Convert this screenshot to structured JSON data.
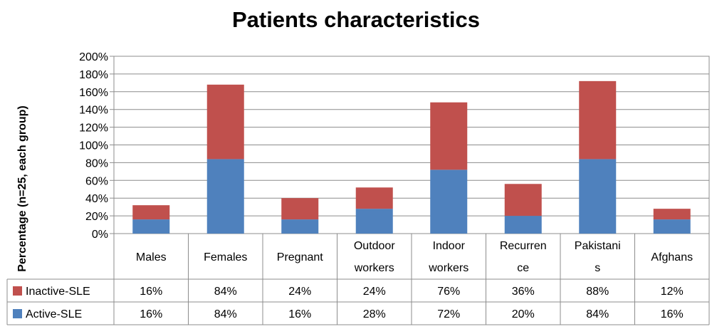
{
  "chart_data": {
    "type": "bar",
    "stacked": true,
    "title": "Patients characteristics",
    "xlabel": "",
    "ylabel": "Percentage (n=25, each group)",
    "ylim": [
      0,
      200
    ],
    "yticks": [
      "0%",
      "20%",
      "40%",
      "60%",
      "80%",
      "100%",
      "120%",
      "140%",
      "160%",
      "180%",
      "200%"
    ],
    "grid": true,
    "legend": "data-table-left",
    "categories": [
      [
        "Males"
      ],
      [
        "Females"
      ],
      [
        "Pregnant"
      ],
      [
        "Outdoor",
        "workers"
      ],
      [
        "Indoor",
        "workers"
      ],
      [
        "Recurren",
        "ce"
      ],
      [
        "Pakistani",
        "s"
      ],
      [
        "Afghans"
      ]
    ],
    "series": [
      {
        "name": "Active-SLE",
        "color": "#4f81bd",
        "values": [
          16,
          84,
          16,
          28,
          72,
          20,
          84,
          16
        ],
        "labels": [
          "16%",
          "84%",
          "16%",
          "28%",
          "72%",
          "20%",
          "84%",
          "16%"
        ]
      },
      {
        "name": "Inactive-SLE",
        "color": "#c0504d",
        "values": [
          16,
          84,
          24,
          24,
          76,
          36,
          88,
          12
        ],
        "labels": [
          "16%",
          "84%",
          "24%",
          "24%",
          "76%",
          "36%",
          "88%",
          "12%"
        ]
      }
    ],
    "table_order": [
      "Inactive-SLE",
      "Active-SLE"
    ]
  }
}
